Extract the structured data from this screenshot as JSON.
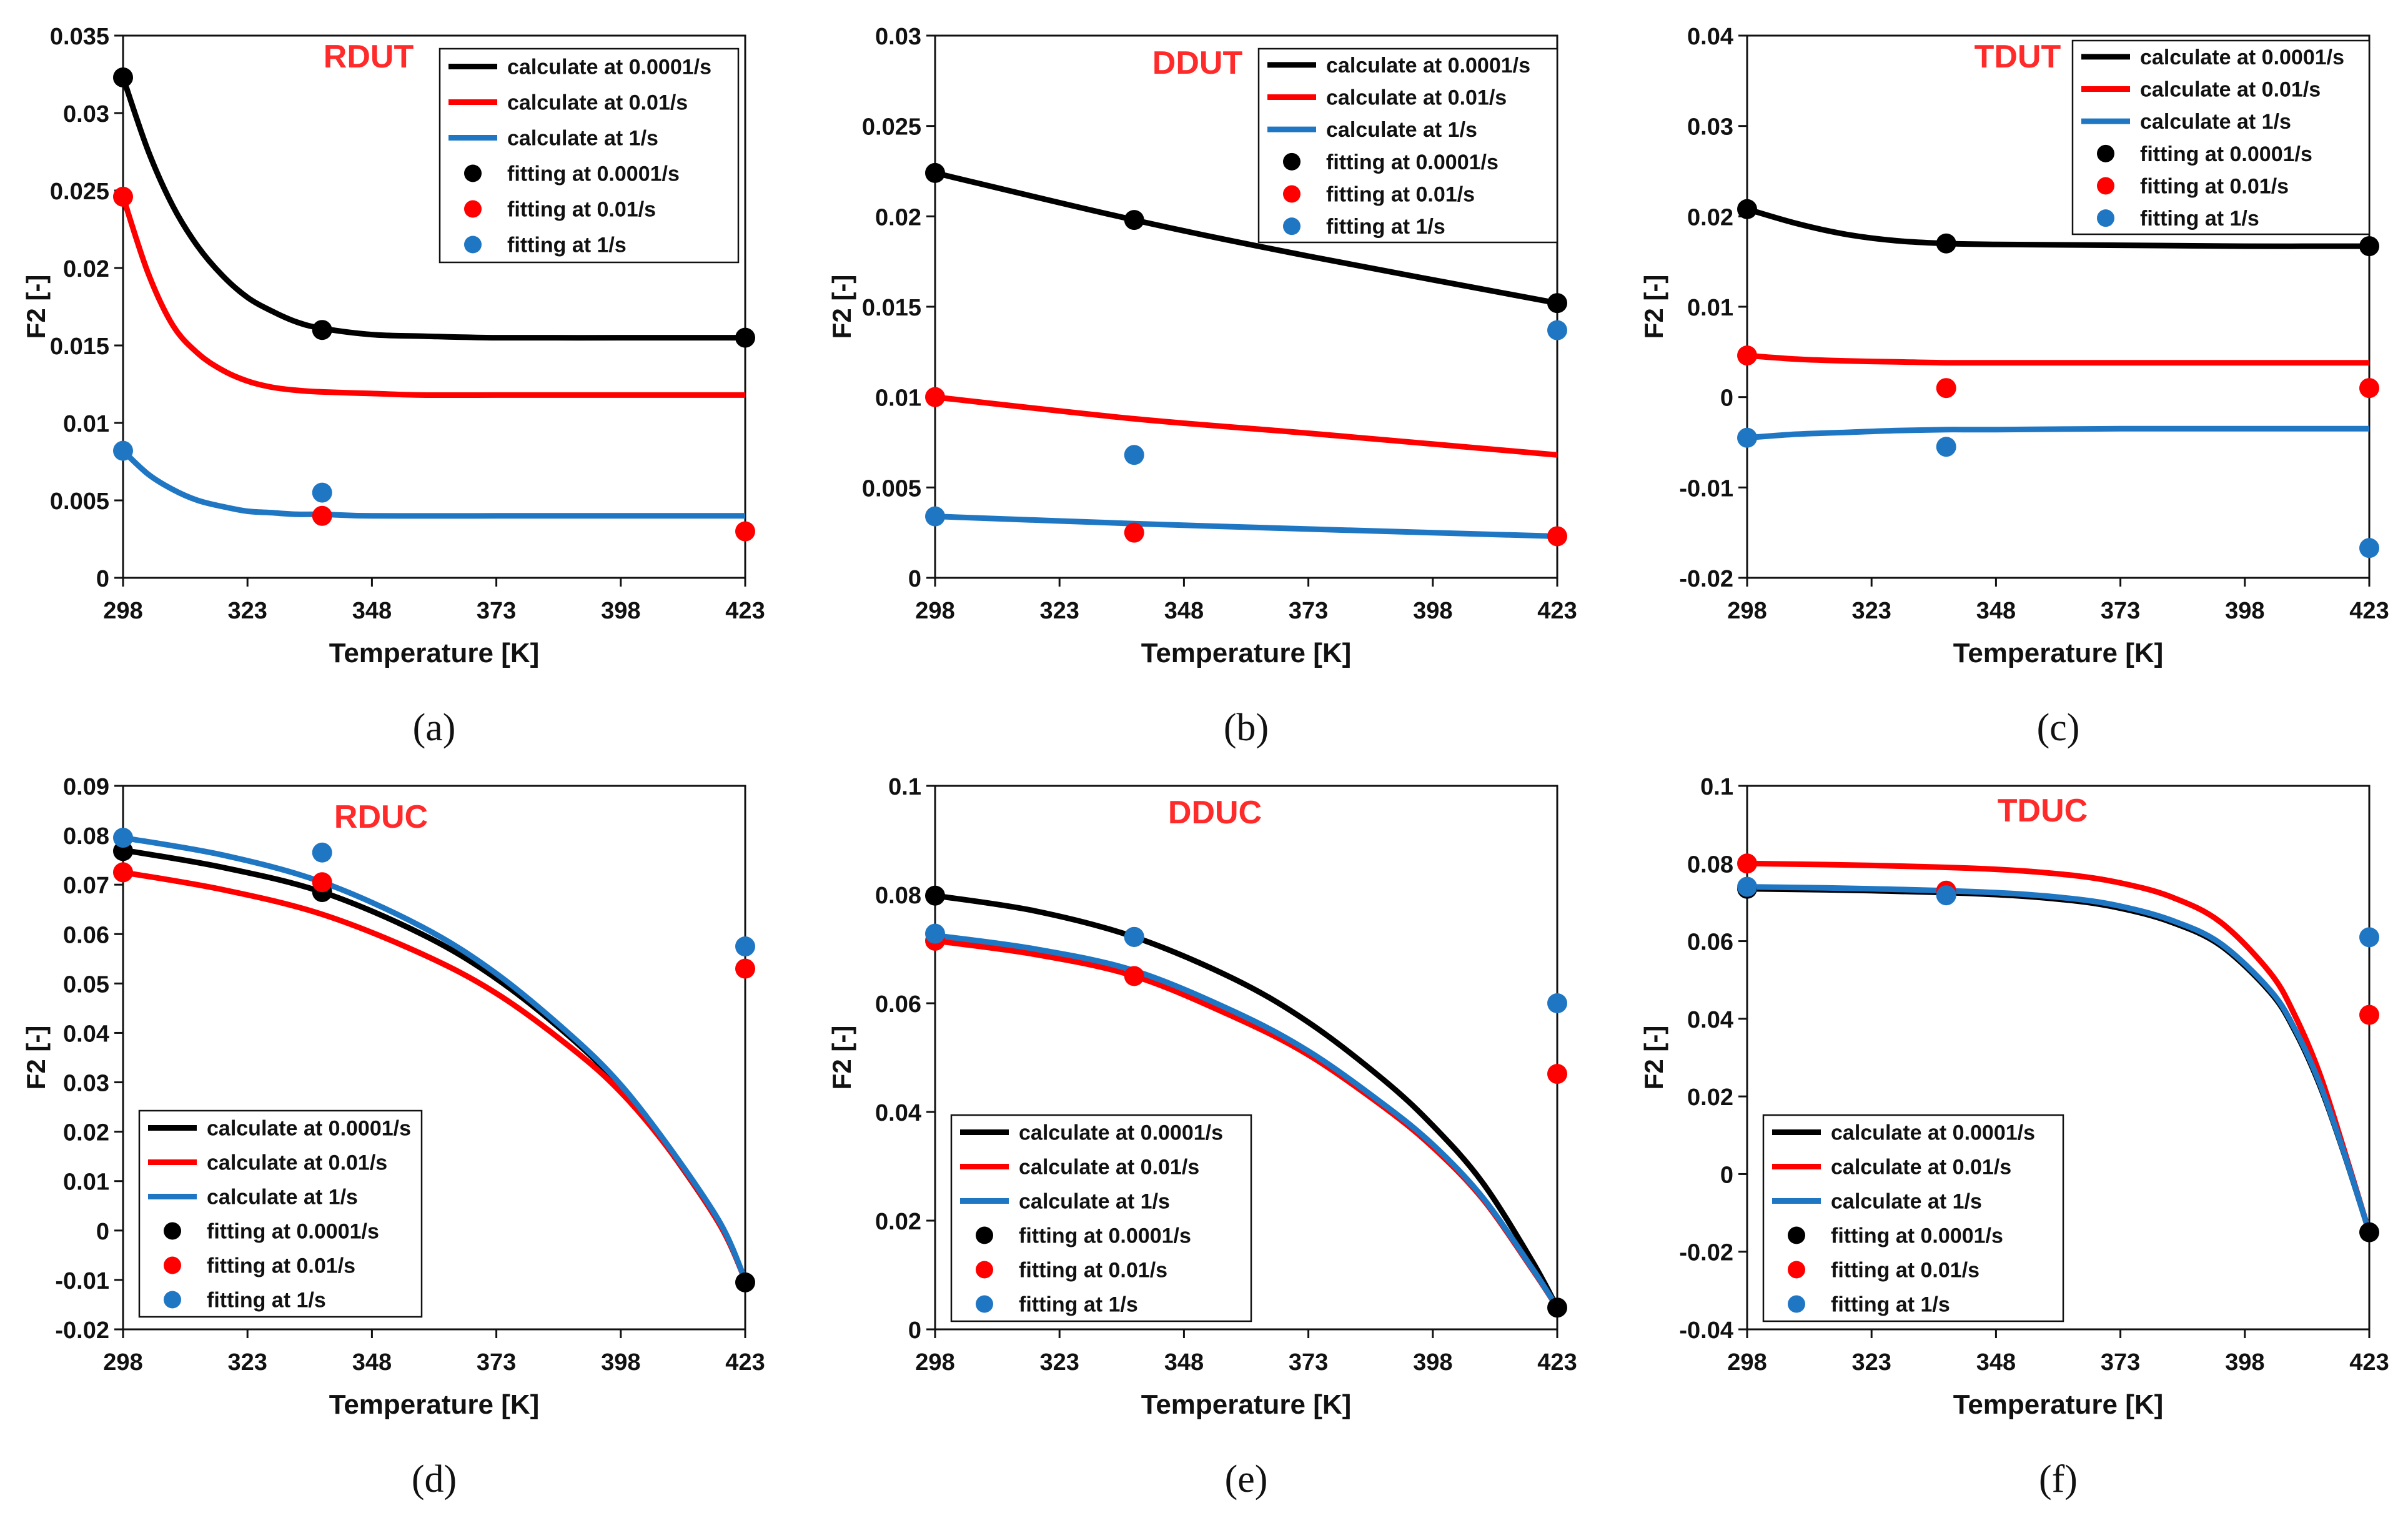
{
  "colors": {
    "black": "#000000",
    "red": "#ff0000",
    "blue": "#1f77c4",
    "title": "#ff2a2a"
  },
  "chart_data": [
    {
      "type": "line",
      "title": "RDUT",
      "caption": "(a)",
      "xlabel": "Temperature [K]",
      "ylabel": "F2 [-]",
      "xlim": [
        298,
        423
      ],
      "ylim": [
        0,
        0.035
      ],
      "xticks": [
        298,
        323,
        348,
        373,
        398,
        423
      ],
      "yticks": [
        0,
        0.005,
        0.01,
        0.015,
        0.02,
        0.025,
        0.03,
        0.035
      ],
      "ytick_labels": [
        "0",
        "0.005",
        "0.01",
        "0.015",
        "0.02",
        "0.025",
        "0.03",
        "0.035"
      ],
      "legend_position": "top-right",
      "series": [
        {
          "name": "calculate at 0.0001/s",
          "kind": "line",
          "color": "black",
          "x": [
            298,
            303,
            308,
            313,
            318,
            323,
            328,
            333,
            338,
            348,
            358,
            373,
            398,
            423
          ],
          "y": [
            0.0323,
            0.0276,
            0.024,
            0.0214,
            0.0195,
            0.0181,
            0.0172,
            0.0165,
            0.0161,
            0.0157,
            0.0156,
            0.0155,
            0.0155,
            0.0155
          ]
        },
        {
          "name": "calculate at 0.01/s",
          "kind": "line",
          "color": "red",
          "x": [
            298,
            303,
            308,
            313,
            318,
            323,
            328,
            333,
            338,
            348,
            358,
            373,
            398,
            423
          ],
          "y": [
            0.0246,
            0.0197,
            0.0163,
            0.0145,
            0.0134,
            0.0127,
            0.0123,
            0.0121,
            0.012,
            0.0119,
            0.0118,
            0.0118,
            0.0118,
            0.0118
          ]
        },
        {
          "name": "calculate at 1/s",
          "kind": "line",
          "color": "blue",
          "x": [
            298,
            303,
            308,
            313,
            318,
            323,
            328,
            333,
            338,
            348,
            373,
            398,
            423
          ],
          "y": [
            0.0082,
            0.0067,
            0.0057,
            0.005,
            0.0046,
            0.0043,
            0.0042,
            0.0041,
            0.0041,
            0.004,
            0.004,
            0.004,
            0.004
          ]
        },
        {
          "name": "fitting at 0.0001/s",
          "kind": "points",
          "color": "black",
          "x": [
            298,
            338,
            423
          ],
          "y": [
            0.0323,
            0.016,
            0.0155
          ]
        },
        {
          "name": "fitting at 0.01/s",
          "kind": "points",
          "color": "red",
          "x": [
            298,
            338,
            423
          ],
          "y": [
            0.0246,
            0.004,
            0.003
          ]
        },
        {
          "name": "fitting at 1/s",
          "kind": "points",
          "color": "blue",
          "x": [
            298,
            338
          ],
          "y": [
            0.0082,
            0.0055
          ]
        }
      ]
    },
    {
      "type": "line",
      "title": "DDUT",
      "caption": "(b)",
      "xlabel": "Temperature [K]",
      "ylabel": "F2 [-]",
      "xlim": [
        298,
        423
      ],
      "ylim": [
        0,
        0.03
      ],
      "xticks": [
        298,
        323,
        348,
        373,
        398,
        423
      ],
      "yticks": [
        0,
        0.005,
        0.01,
        0.015,
        0.02,
        0.025,
        0.03
      ],
      "ytick_labels": [
        "0",
        "0.005",
        "0.01",
        "0.015",
        "0.02",
        "0.025",
        "0.03"
      ],
      "legend_position": "top-right",
      "series": [
        {
          "name": "calculate at 0.0001/s",
          "kind": "line",
          "color": "black",
          "x": [
            298,
            338,
            373,
            423
          ],
          "y": [
            0.0224,
            0.0198,
            0.0178,
            0.0152
          ]
        },
        {
          "name": "calculate at 0.01/s",
          "kind": "line",
          "color": "red",
          "x": [
            298,
            338,
            373,
            423
          ],
          "y": [
            0.01,
            0.0088,
            0.008,
            0.0068
          ]
        },
        {
          "name": "calculate at 1/s",
          "kind": "line",
          "color": "blue",
          "x": [
            298,
            338,
            373,
            423
          ],
          "y": [
            0.0034,
            0.003,
            0.0027,
            0.0023
          ]
        },
        {
          "name": "fitting at 0.0001/s",
          "kind": "points",
          "color": "black",
          "x": [
            298,
            338,
            423
          ],
          "y": [
            0.0224,
            0.0198,
            0.0152
          ]
        },
        {
          "name": "fitting at 0.01/s",
          "kind": "points",
          "color": "red",
          "x": [
            298,
            338,
            423
          ],
          "y": [
            0.01,
            0.0025,
            0.0023
          ]
        },
        {
          "name": "fitting at 1/s",
          "kind": "points",
          "color": "blue",
          "x": [
            298,
            338,
            423
          ],
          "y": [
            0.0034,
            0.0068,
            0.0137
          ]
        }
      ]
    },
    {
      "type": "line",
      "title": "TDUT",
      "caption": "(c)",
      "xlabel": "Temperature [K]",
      "ylabel": "F2 [-]",
      "xlim": [
        298,
        423
      ],
      "ylim": [
        -0.02,
        0.04
      ],
      "xticks": [
        298,
        323,
        348,
        373,
        398,
        423
      ],
      "yticks": [
        -0.02,
        -0.01,
        0,
        0.01,
        0.02,
        0.03,
        0.04
      ],
      "ytick_labels": [
        "-0.02",
        "-0.01",
        "0",
        "0.01",
        "0.02",
        "0.03",
        "0.04"
      ],
      "legend_position": "top-right",
      "series": [
        {
          "name": "calculate at 0.0001/s",
          "kind": "line",
          "color": "black",
          "x": [
            298,
            308,
            318,
            328,
            338,
            348,
            373,
            398,
            423
          ],
          "y": [
            0.0208,
            0.0192,
            0.018,
            0.0173,
            0.017,
            0.0169,
            0.0168,
            0.0167,
            0.0167
          ]
        },
        {
          "name": "calculate at 0.01/s",
          "kind": "line",
          "color": "red",
          "x": [
            298,
            308,
            318,
            328,
            338,
            348,
            373,
            398,
            423
          ],
          "y": [
            0.0046,
            0.0042,
            0.004,
            0.0039,
            0.0038,
            0.0038,
            0.0038,
            0.0038,
            0.0038
          ]
        },
        {
          "name": "calculate at 1/s",
          "kind": "line",
          "color": "blue",
          "x": [
            298,
            308,
            318,
            328,
            338,
            348,
            373,
            398,
            423
          ],
          "y": [
            -0.0045,
            -0.0041,
            -0.0039,
            -0.0037,
            -0.0036,
            -0.0036,
            -0.0035,
            -0.0035,
            -0.0035
          ]
        },
        {
          "name": "fitting at 0.0001/s",
          "kind": "points",
          "color": "black",
          "x": [
            298,
            338,
            423
          ],
          "y": [
            0.0208,
            0.017,
            0.0167
          ]
        },
        {
          "name": "fitting at 0.01/s",
          "kind": "points",
          "color": "red",
          "x": [
            298,
            338,
            423
          ],
          "y": [
            0.0046,
            0.001,
            0.001
          ]
        },
        {
          "name": "fitting at 1/s",
          "kind": "points",
          "color": "blue",
          "x": [
            298,
            338,
            423
          ],
          "y": [
            -0.0045,
            -0.0055,
            -0.0167
          ]
        }
      ]
    },
    {
      "type": "line",
      "title": "RDUC",
      "caption": "(d)",
      "xlabel": "Temperature [K]",
      "ylabel": "F2 [-]",
      "xlim": [
        298,
        423
      ],
      "ylim": [
        -0.02,
        0.09
      ],
      "xticks": [
        298,
        323,
        348,
        373,
        398,
        423
      ],
      "yticks": [
        -0.02,
        -0.01,
        0,
        0.01,
        0.02,
        0.03,
        0.04,
        0.05,
        0.06,
        0.07,
        0.08,
        0.09
      ],
      "ytick_labels": [
        "-0.02",
        "-0.01",
        "0",
        "0.01",
        "0.02",
        "0.03",
        "0.04",
        "0.05",
        "0.06",
        "0.07",
        "0.08",
        "0.09"
      ],
      "legend_position": "bottom-left",
      "series": [
        {
          "name": "calculate at 0.0001/s",
          "kind": "line",
          "color": "black",
          "x": [
            298,
            318,
            338,
            358,
            373,
            388,
            398,
            408,
            418,
            423
          ],
          "y": [
            0.077,
            0.0735,
            0.0685,
            0.06,
            0.051,
            0.039,
            0.029,
            0.016,
            0.001,
            -0.01
          ]
        },
        {
          "name": "calculate at 0.01/s",
          "kind": "line",
          "color": "red",
          "x": [
            298,
            318,
            338,
            358,
            373,
            388,
            398,
            408,
            418,
            423
          ],
          "y": [
            0.0725,
            0.069,
            0.064,
            0.056,
            0.048,
            0.037,
            0.028,
            0.016,
            0.001,
            -0.01
          ]
        },
        {
          "name": "calculate at 1/s",
          "kind": "line",
          "color": "blue",
          "x": [
            298,
            318,
            338,
            358,
            373,
            388,
            398,
            408,
            418,
            423
          ],
          "y": [
            0.0795,
            0.076,
            0.0705,
            0.0615,
            0.052,
            0.0395,
            0.0295,
            0.0165,
            0.0015,
            -0.01
          ]
        },
        {
          "name": "fitting at 0.0001/s",
          "kind": "points",
          "color": "black",
          "x": [
            298,
            338,
            423
          ],
          "y": [
            0.0768,
            0.0685,
            -0.0105
          ]
        },
        {
          "name": "fitting at 0.01/s",
          "kind": "points",
          "color": "red",
          "x": [
            298,
            338,
            423
          ],
          "y": [
            0.0725,
            0.0705,
            0.053
          ]
        },
        {
          "name": "fitting at 1/s",
          "kind": "points",
          "color": "blue",
          "x": [
            298,
            338,
            423
          ],
          "y": [
            0.0795,
            0.0765,
            0.0575
          ]
        }
      ]
    },
    {
      "type": "line",
      "title": "DDUC",
      "caption": "(e)",
      "xlabel": "Temperature [K]",
      "ylabel": "F2 [-]",
      "xlim": [
        298,
        423
      ],
      "ylim": [
        0,
        0.1
      ],
      "xticks": [
        298,
        323,
        348,
        373,
        398,
        423
      ],
      "yticks": [
        0,
        0.02,
        0.04,
        0.06,
        0.08,
        0.1
      ],
      "ytick_labels": [
        "0",
        "0.02",
        "0.04",
        "0.06",
        "0.08",
        "0.1"
      ],
      "legend_position": "bottom-left",
      "series": [
        {
          "name": "calculate at 0.0001/s",
          "kind": "line",
          "color": "black",
          "x": [
            298,
            318,
            338,
            358,
            373,
            388,
            398,
            408,
            418,
            423
          ],
          "y": [
            0.0798,
            0.077,
            0.0722,
            0.0645,
            0.0565,
            0.046,
            0.0375,
            0.027,
            0.0125,
            0.004
          ]
        },
        {
          "name": "calculate at 0.01/s",
          "kind": "line",
          "color": "red",
          "x": [
            298,
            318,
            338,
            358,
            373,
            388,
            398,
            408,
            418,
            423
          ],
          "y": [
            0.0715,
            0.069,
            0.065,
            0.0575,
            0.0505,
            0.041,
            0.0335,
            0.024,
            0.011,
            0.004
          ]
        },
        {
          "name": "calculate at 1/s",
          "kind": "line",
          "color": "blue",
          "x": [
            298,
            318,
            338,
            358,
            373,
            388,
            398,
            408,
            418,
            423
          ],
          "y": [
            0.0725,
            0.07,
            0.066,
            0.0585,
            0.0512,
            0.0415,
            0.034,
            0.0243,
            0.0112,
            0.004
          ]
        },
        {
          "name": "fitting at 0.0001/s",
          "kind": "points",
          "color": "black",
          "x": [
            298,
            338,
            423
          ],
          "y": [
            0.0798,
            0.0722,
            0.004
          ]
        },
        {
          "name": "fitting at 0.01/s",
          "kind": "points",
          "color": "red",
          "x": [
            298,
            338,
            423
          ],
          "y": [
            0.0715,
            0.065,
            0.047
          ]
        },
        {
          "name": "fitting at 1/s",
          "kind": "points",
          "color": "blue",
          "x": [
            298,
            338,
            423
          ],
          "y": [
            0.0728,
            0.0722,
            0.06
          ]
        }
      ]
    },
    {
      "type": "line",
      "title": "TDUC",
      "caption": "(f)",
      "xlabel": "Temperature [K]",
      "ylabel": "F2 [-]",
      "xlim": [
        298,
        423
      ],
      "ylim": [
        -0.04,
        0.1
      ],
      "xticks": [
        298,
        323,
        348,
        373,
        398,
        423
      ],
      "yticks": [
        -0.04,
        -0.02,
        0,
        0.02,
        0.04,
        0.06,
        0.08,
        0.1
      ],
      "ytick_labels": [
        "-0.04",
        "-0.02",
        "0",
        "0.02",
        "0.04",
        "0.06",
        "0.08",
        "0.1"
      ],
      "legend_position": "bottom-left",
      "series": [
        {
          "name": "calculate at 0.0001/s",
          "kind": "line",
          "color": "black",
          "x": [
            298,
            323,
            348,
            363,
            373,
            383,
            393,
            403,
            408,
            413,
            418,
            423
          ],
          "y": [
            0.0735,
            0.073,
            0.072,
            0.0705,
            0.0685,
            0.065,
            0.059,
            0.047,
            0.037,
            0.023,
            0.005,
            -0.015
          ]
        },
        {
          "name": "calculate at 0.01/s",
          "kind": "line",
          "color": "red",
          "x": [
            298,
            323,
            348,
            363,
            373,
            383,
            393,
            403,
            408,
            413,
            418,
            423
          ],
          "y": [
            0.08,
            0.0795,
            0.0785,
            0.077,
            0.075,
            0.0715,
            0.065,
            0.052,
            0.041,
            0.026,
            0.006,
            -0.015
          ]
        },
        {
          "name": "calculate at 1/s",
          "kind": "line",
          "color": "blue",
          "x": [
            298,
            323,
            348,
            363,
            373,
            383,
            393,
            403,
            408,
            413,
            418,
            423
          ],
          "y": [
            0.074,
            0.0735,
            0.0725,
            0.071,
            0.069,
            0.0655,
            0.0595,
            0.0475,
            0.0375,
            0.0235,
            0.0052,
            -0.015
          ]
        },
        {
          "name": "fitting at 0.0001/s",
          "kind": "points",
          "color": "black",
          "x": [
            298,
            338,
            423
          ],
          "y": [
            0.0735,
            0.0722,
            -0.015
          ]
        },
        {
          "name": "fitting at 0.01/s",
          "kind": "points",
          "color": "red",
          "x": [
            298,
            338,
            423
          ],
          "y": [
            0.08,
            0.073,
            0.041
          ]
        },
        {
          "name": "fitting at 1/s",
          "kind": "points",
          "color": "blue",
          "x": [
            298,
            338,
            423
          ],
          "y": [
            0.074,
            0.0718,
            0.061
          ]
        }
      ]
    }
  ]
}
